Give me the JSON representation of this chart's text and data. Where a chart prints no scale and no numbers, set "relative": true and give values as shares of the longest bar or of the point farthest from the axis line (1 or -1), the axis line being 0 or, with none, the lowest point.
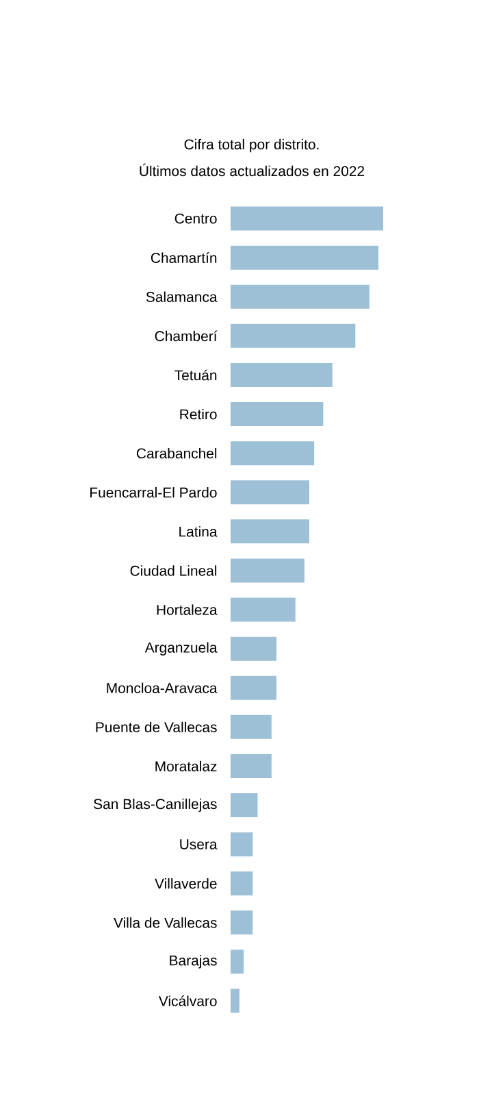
{
  "chart_data": {
    "type": "bar",
    "orientation": "horizontal",
    "relative": true,
    "title": "Cifra total por distrito.",
    "subtitle": "Últimos datos actualizados en 2022",
    "categories": [
      "Centro",
      "Chamartín",
      "Salamanca",
      "Chamberí",
      "Tetuán",
      "Retiro",
      "Carabanchel",
      "Fuencarral-El Pardo",
      "Latina",
      "Ciudad Lineal",
      "Hortaleza",
      "Arganzuela",
      "Moncloa-Aravaca",
      "Puente de Vallecas",
      "Moratalaz",
      "San Blas-Canillejas",
      "Usera",
      "Villaverde",
      "Villa de Vallecas",
      "Barajas",
      "Vicálvaro"
    ],
    "values": [
      1,
      0.968,
      0.909,
      0.817,
      0.667,
      0.607,
      0.548,
      0.516,
      0.516,
      0.484,
      0.425,
      0.301,
      0.301,
      0.269,
      0.269,
      0.178,
      0.146,
      0.146,
      0.146,
      0.087,
      0.059
    ],
    "color": "#9dc0d6"
  }
}
